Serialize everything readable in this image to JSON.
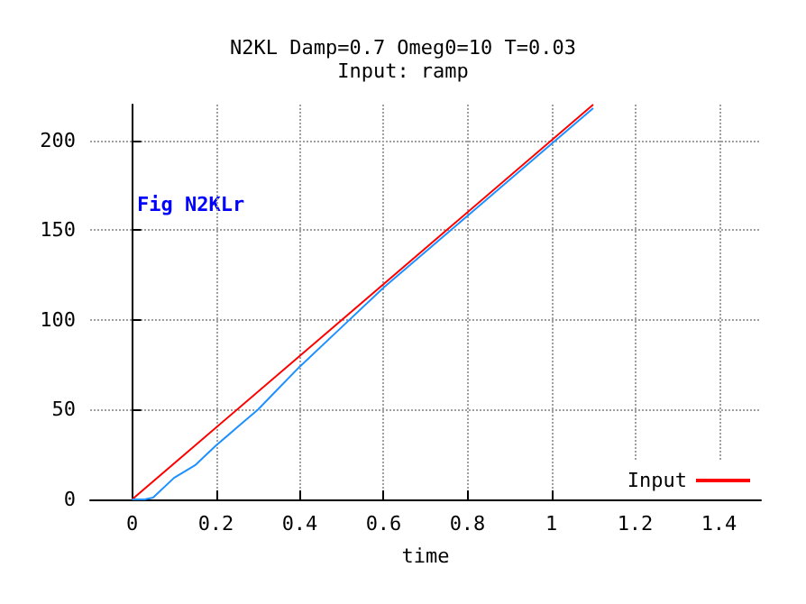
{
  "chart_data": {
    "type": "line",
    "title": "N2KL Damp=0.7 Omeg0=10 T=0.03",
    "subtitle": "Input: ramp",
    "xlabel": "time",
    "annotations": [
      "Fig N2KLr"
    ],
    "xlim": [
      -0.1,
      1.5
    ],
    "xticks": [
      0,
      0.2,
      0.4,
      0.6,
      0.8,
      1,
      1.2,
      1.4
    ],
    "ylim": [
      0,
      220
    ],
    "yticks": [
      0,
      50,
      100,
      150,
      200
    ],
    "grid": true,
    "legend": "bottom right",
    "marker": "none",
    "line_style": "solid",
    "series": [
      {
        "name": "Input",
        "color": "#ff0000",
        "x": [
          0,
          0.5,
          1.1
        ],
        "values": [
          0,
          100,
          220
        ]
      },
      {
        "color": "#1e90ff",
        "x": [
          0,
          0.03,
          0.05,
          0.1,
          0.15,
          0.2,
          0.25,
          0.3,
          0.35,
          0.4,
          0.5,
          0.6,
          0.8,
          1.0,
          1.1
        ],
        "values": [
          0,
          0,
          1,
          12,
          19,
          30,
          40,
          50,
          62,
          74,
          96,
          118,
          158,
          198,
          218
        ]
      }
    ]
  }
}
